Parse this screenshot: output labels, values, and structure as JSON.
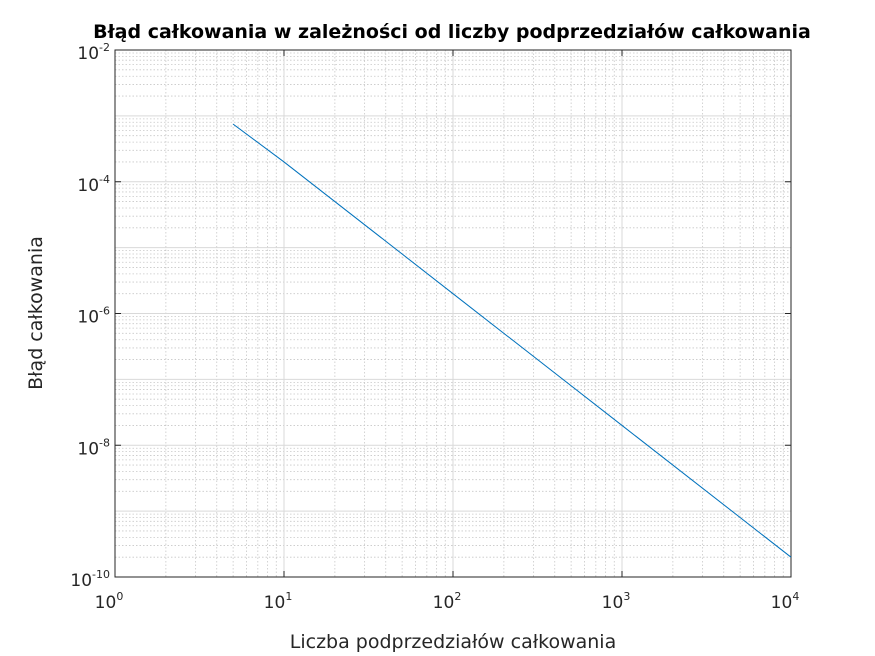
{
  "chart_data": {
    "type": "line",
    "title": "Błąd całkowania w zależności od liczby podprzedziałów całkowania",
    "xlabel": "Liczba podprzedziałów całkowania",
    "ylabel": "Błąd całkowania",
    "x_scale": "log",
    "y_scale": "log",
    "xlim": [
      1,
      10000
    ],
    "ylim": [
      1e-10,
      0.01
    ],
    "x_ticks": [
      {
        "base": "10",
        "exp": "0",
        "value": 1
      },
      {
        "base": "10",
        "exp": "1",
        "value": 10
      },
      {
        "base": "10",
        "exp": "2",
        "value": 100
      },
      {
        "base": "10",
        "exp": "3",
        "value": 1000
      },
      {
        "base": "10",
        "exp": "4",
        "value": 10000
      }
    ],
    "y_ticks": [
      {
        "base": "10",
        "exp": "-10",
        "value": 1e-10
      },
      {
        "base": "10",
        "exp": "-8",
        "value": 1e-08
      },
      {
        "base": "10",
        "exp": "-6",
        "value": 1e-06
      },
      {
        "base": "10",
        "exp": "-4",
        "value": 0.0001
      },
      {
        "base": "10",
        "exp": "-2",
        "value": 0.01
      }
    ],
    "grid": true,
    "minor_grid": true,
    "series": [
      {
        "color": "#0072BD",
        "x": [
          5,
          10,
          100,
          1000,
          10000
        ],
        "y": [
          0.00075,
          0.0002,
          2e-06,
          2e-08,
          2e-10
        ]
      }
    ]
  }
}
